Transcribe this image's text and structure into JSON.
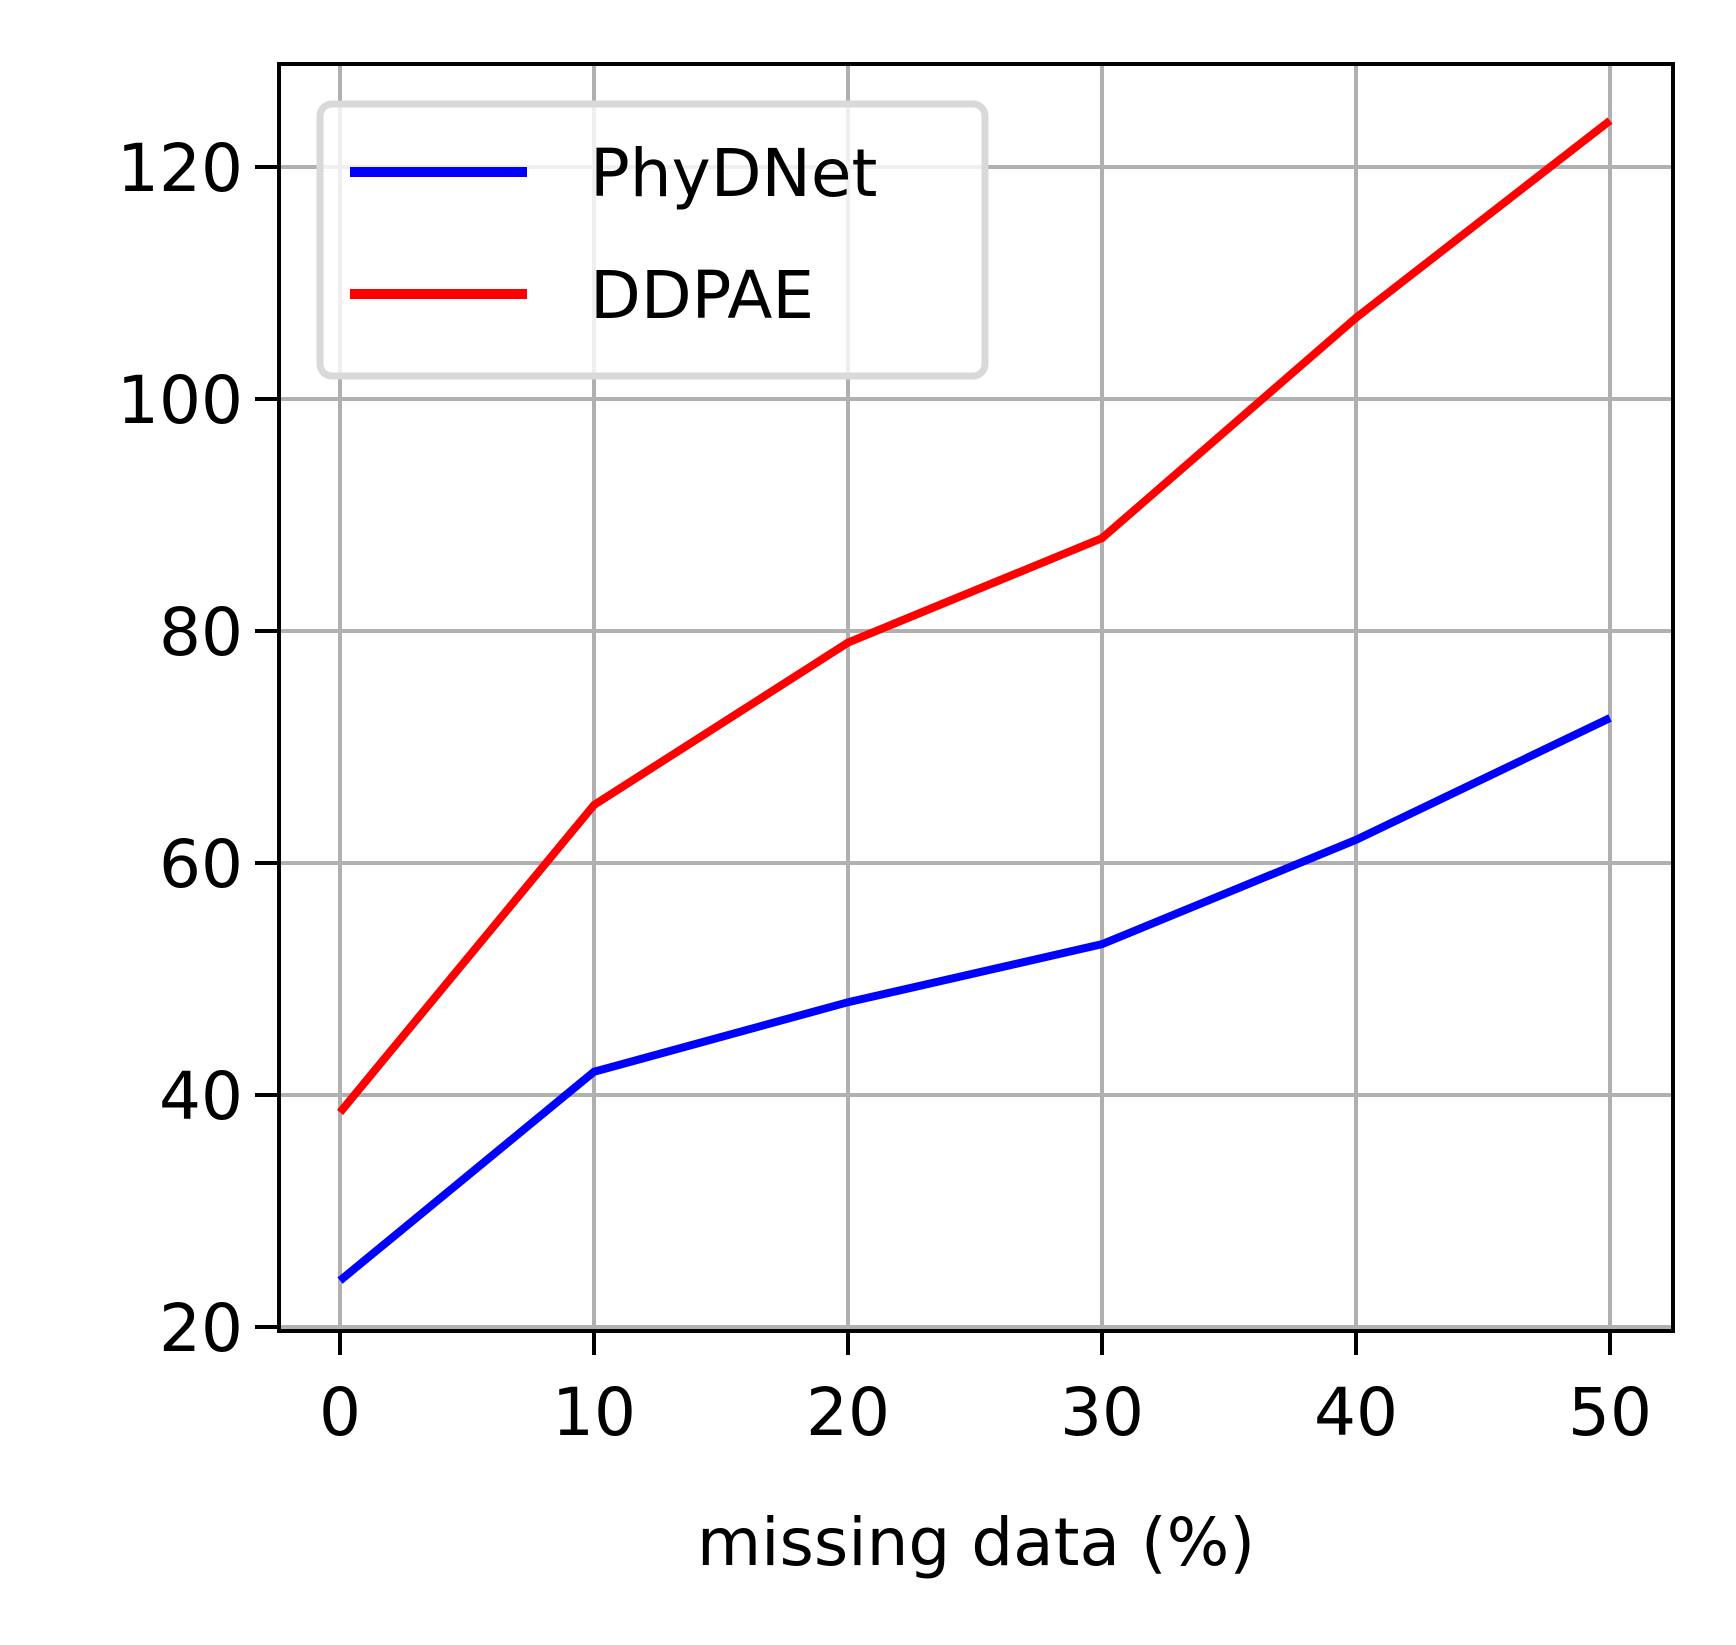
{
  "chart_data": {
    "type": "line",
    "title": "",
    "xlabel": "missing data (%)",
    "ylabel": "",
    "x": [
      0,
      10,
      20,
      30,
      40,
      50
    ],
    "xticks": [
      "0",
      "10",
      "20",
      "30",
      "40",
      "50"
    ],
    "yticks": [
      "20",
      "40",
      "60",
      "80",
      "100",
      "120"
    ],
    "xlim": [
      -2.5,
      52.5
    ],
    "ylim": [
      19.5,
      129
    ],
    "grid": true,
    "legend_position": "upper left",
    "series": [
      {
        "name": "PhyDNet",
        "color": "#0000ff",
        "values": [
          24,
          42,
          48,
          53,
          62,
          72.5
        ]
      },
      {
        "name": "DDPAE",
        "color": "#ff0000",
        "values": [
          38.5,
          65,
          79,
          88,
          107,
          124
        ]
      }
    ]
  },
  "legend": {
    "items": [
      {
        "label": "PhyDNet",
        "color": "#0000ff"
      },
      {
        "label": "DDPAE",
        "color": "#ff0000"
      }
    ]
  },
  "colors": {
    "grid": "#b0b0b0",
    "axis": "#000000",
    "legend_border": "#d9d9d9"
  }
}
